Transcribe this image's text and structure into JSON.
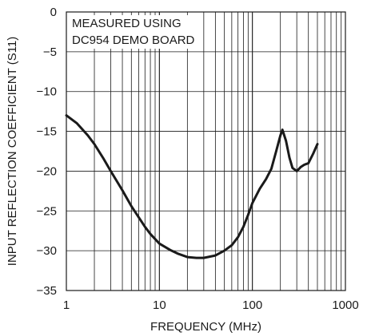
{
  "chart_data": {
    "type": "line",
    "xscale": "log",
    "xlim": [
      1,
      1000
    ],
    "ylim": [
      -35,
      0
    ],
    "xlabel": "FREQUENCY (MHz)",
    "ylabel": "INPUT REFLECTION COEFFICIENT (S11)",
    "x_ticks": [
      "1",
      "10",
      "100",
      "1000"
    ],
    "x_tick_values": [
      1,
      10,
      100,
      1000
    ],
    "y_ticks": [
      "0",
      "−5",
      "−10",
      "−15",
      "−20",
      "−25",
      "−30",
      "−35"
    ],
    "y_tick_values": [
      0,
      -5,
      -10,
      -15,
      -20,
      -25,
      -30,
      -35
    ],
    "annotations": [
      "MEASURED USING",
      "DC954 DEMO BOARD"
    ],
    "grid": true,
    "series": [
      {
        "color": "#1a1a1a",
        "x": [
          1,
          1.3,
          1.7,
          2,
          2.5,
          3,
          4,
          5,
          6,
          7,
          8,
          10,
          13,
          16,
          20,
          25,
          30,
          40,
          50,
          60,
          70,
          80,
          90,
          100,
          120,
          140,
          160,
          180,
          200,
          210,
          230,
          250,
          270,
          300,
          330,
          360,
          400,
          450,
          500
        ],
        "y": [
          -13.0,
          -14.0,
          -15.5,
          -16.6,
          -18.4,
          -20.0,
          -22.4,
          -24.4,
          -25.8,
          -27.0,
          -27.9,
          -29.1,
          -29.9,
          -30.4,
          -30.8,
          -30.9,
          -30.9,
          -30.6,
          -30.0,
          -29.3,
          -28.3,
          -27.0,
          -25.5,
          -24.0,
          -22.2,
          -21.0,
          -19.7,
          -17.5,
          -15.5,
          -14.8,
          -16.2,
          -18.3,
          -19.6,
          -20.0,
          -19.5,
          -19.2,
          -19.0,
          -17.8,
          -16.6
        ]
      }
    ]
  }
}
